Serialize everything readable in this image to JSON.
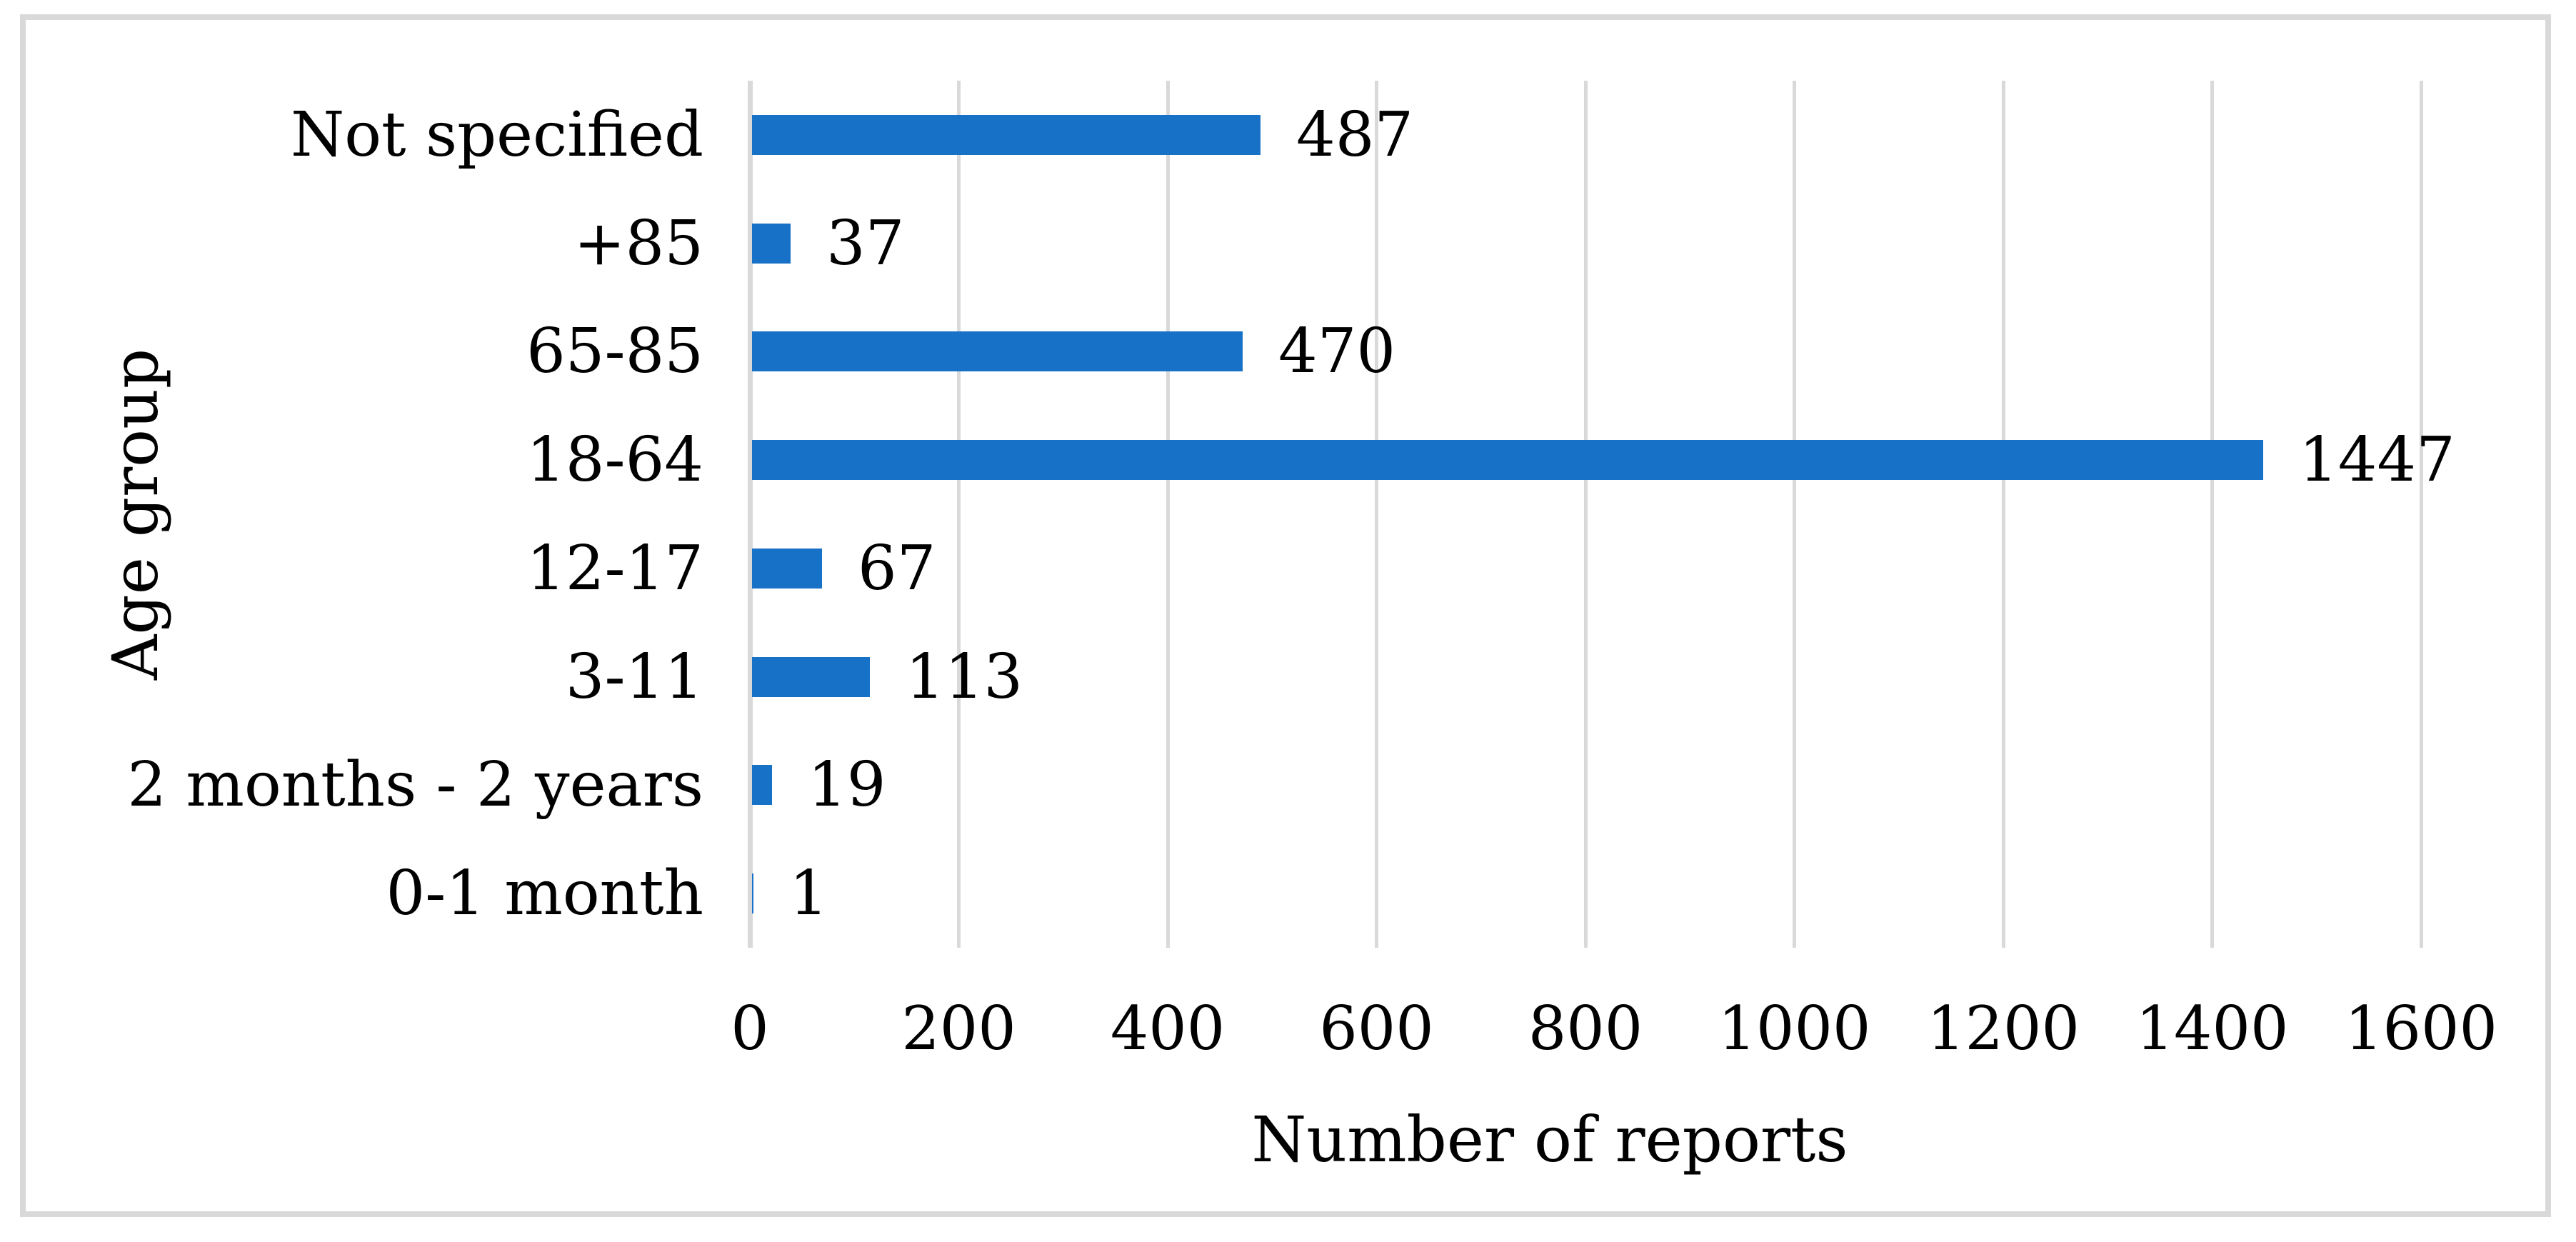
{
  "chart_data": {
    "type": "bar",
    "orientation": "horizontal",
    "categories": [
      "Not specified",
      "+85",
      "65-85",
      "18-64",
      "12-17",
      "3-11",
      "2 months - 2 years",
      "0-1 month"
    ],
    "values": [
      487,
      37,
      470,
      1447,
      67,
      113,
      19,
      1
    ],
    "data_labels": [
      "487",
      "37",
      "470",
      "1447",
      "67",
      "113",
      "19",
      "1"
    ],
    "xlabel": "Number of reports",
    "ylabel": "Age group",
    "xlim": [
      0,
      1600
    ],
    "xticks": [
      0,
      200,
      400,
      600,
      800,
      1000,
      1200,
      1400,
      1600
    ],
    "grid": "vertical gridlines at each x tick",
    "legend": "none",
    "data_labels_shown": true
  },
  "colors": {
    "bar": "#1772C7",
    "gridline": "#D9D9D9",
    "frame_border": "#D9D9D9",
    "text": "#000000",
    "background": "#FFFFFF"
  }
}
